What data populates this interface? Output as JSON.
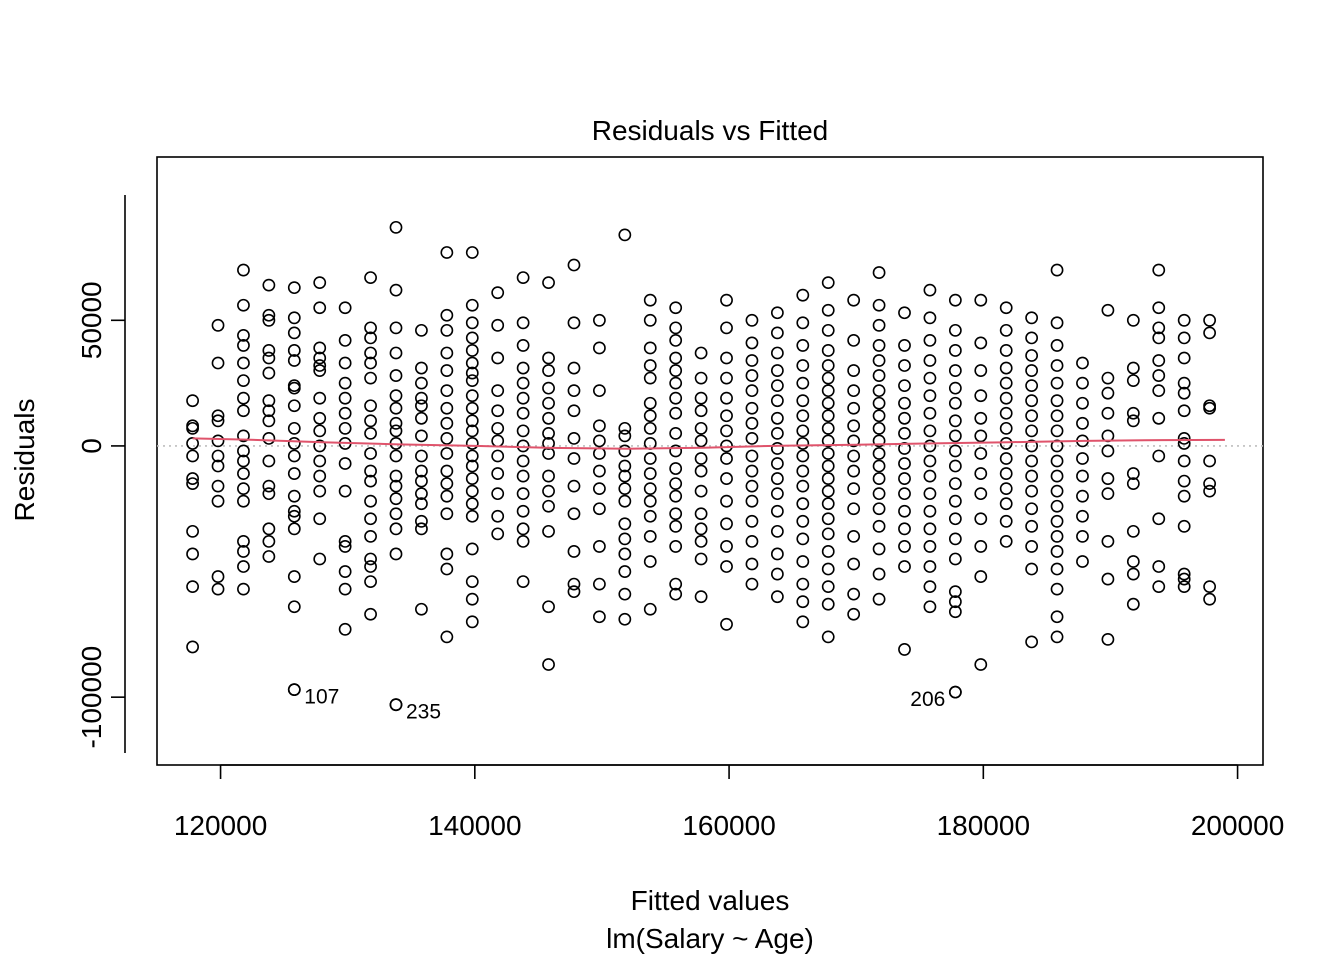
{
  "chart_data": {
    "type": "scatter",
    "title": "Residuals vs Fitted",
    "xlabel": "Fitted values",
    "subtitle": "lm(Salary ~ Age)",
    "ylabel": "Residuals",
    "xlim": [
      115000,
      202000
    ],
    "ylim": [
      -127000,
      115000
    ],
    "x_ticks": [
      120000,
      140000,
      160000,
      180000,
      200000
    ],
    "x_tick_labels": [
      "120000",
      "140000",
      "160000",
      "180000",
      "200000"
    ],
    "y_ticks": [
      -100000,
      0,
      50000
    ],
    "y_tick_labels": [
      "-100000",
      "0",
      "50000"
    ],
    "grid": false,
    "reference_line": {
      "y": 0,
      "style": "dotted",
      "color": "#bebebe"
    },
    "smooth_color": "#df536b",
    "smooth_line": [
      [
        117800,
        3000
      ],
      [
        122000,
        2500
      ],
      [
        128000,
        1500
      ],
      [
        134000,
        600
      ],
      [
        140000,
        0
      ],
      [
        146000,
        -800
      ],
      [
        152000,
        -1100
      ],
      [
        158000,
        -700
      ],
      [
        164000,
        100
      ],
      [
        170000,
        500
      ],
      [
        176000,
        1000
      ],
      [
        182000,
        1500
      ],
      [
        188000,
        2000
      ],
      [
        194000,
        2300
      ],
      [
        199000,
        2400
      ]
    ],
    "columns": [
      {
        "x": 117800,
        "y": [
          18000,
          8000,
          7000,
          1000,
          -4000,
          -13000,
          -15000,
          -34000,
          -43000,
          -56000,
          -80000
        ]
      },
      {
        "x": 119800,
        "y": [
          48000,
          33000,
          12000,
          10000,
          2000,
          -4000,
          -8000,
          -16000,
          -22000,
          -52000,
          -57000
        ]
      },
      {
        "x": 121800,
        "y": [
          70000,
          56000,
          44000,
          40000,
          33000,
          26000,
          19000,
          14000,
          4000,
          -2000,
          -6000,
          -11000,
          -17000,
          -22000,
          -38000,
          -42000,
          -48000,
          -57000
        ]
      },
      {
        "x": 123800,
        "y": [
          64000,
          52000,
          50000,
          38000,
          35000,
          29000,
          18000,
          14000,
          10000,
          3000,
          -6000,
          -16000,
          -19000,
          -33000,
          -38000,
          -44000
        ]
      },
      {
        "x": 125800,
        "y": [
          63000,
          51000,
          45000,
          38000,
          34000,
          24000,
          23000,
          16000,
          7000,
          1000,
          -4000,
          -11000,
          -20000,
          -26000,
          -28000,
          -33000,
          -52000,
          -64000,
          -97000
        ]
      },
      {
        "x": 127800,
        "y": [
          65000,
          55000,
          39000,
          35000,
          32000,
          30000,
          19000,
          11000,
          6000,
          0,
          -6000,
          -12000,
          -18000,
          -29000,
          -45000
        ]
      },
      {
        "x": 129800,
        "y": [
          55000,
          42000,
          33000,
          25000,
          19000,
          13000,
          7000,
          1000,
          -7000,
          -18000,
          -38000,
          -40000,
          -50000,
          -57000,
          -73000
        ]
      },
      {
        "x": 131800,
        "y": [
          67000,
          47000,
          43000,
          37000,
          33000,
          27000,
          16000,
          10000,
          5000,
          -3000,
          -10000,
          -14000,
          -22000,
          -29000,
          -36000,
          -45000,
          -48000,
          -54000,
          -67000
        ]
      },
      {
        "x": 133800,
        "y": [
          87000,
          62000,
          47000,
          37000,
          28000,
          20000,
          15000,
          9000,
          6000,
          1000,
          -4000,
          -12000,
          -16000,
          -21000,
          -27000,
          -33000,
          -43000,
          -103000
        ]
      },
      {
        "x": 135800,
        "y": [
          46000,
          31000,
          25000,
          19000,
          16000,
          11000,
          4000,
          -4000,
          -10000,
          -14000,
          -19000,
          -23000,
          -30000,
          -33000,
          -65000
        ]
      },
      {
        "x": 137800,
        "y": [
          77000,
          52000,
          46000,
          37000,
          30000,
          22000,
          15000,
          9000,
          3000,
          -3000,
          -10000,
          -15000,
          -20000,
          -27000,
          -43000,
          -49000,
          -76000
        ]
      },
      {
        "x": 139800,
        "y": [
          77000,
          56000,
          49000,
          43000,
          38000,
          33000,
          29000,
          26000,
          20000,
          15000,
          10000,
          6000,
          1000,
          -4000,
          -8000,
          -13000,
          -18000,
          -23000,
          -28000,
          -41000,
          -54000,
          -61000,
          -70000
        ]
      },
      {
        "x": 141800,
        "y": [
          61000,
          48000,
          35000,
          22000,
          14000,
          7000,
          2000,
          -4000,
          -11000,
          -19000,
          -28000,
          -35000
        ]
      },
      {
        "x": 143800,
        "y": [
          67000,
          49000,
          40000,
          31000,
          25000,
          19000,
          13000,
          6000,
          0,
          -6000,
          -12000,
          -19000,
          -26000,
          -33000,
          -38000,
          -54000
        ]
      },
      {
        "x": 145800,
        "y": [
          65000,
          35000,
          30000,
          23000,
          17000,
          11000,
          5000,
          1000,
          -3000,
          -12000,
          -18000,
          -24000,
          -34000,
          -64000,
          -87000
        ]
      },
      {
        "x": 147800,
        "y": [
          72000,
          49000,
          31000,
          22000,
          14000,
          3000,
          -5000,
          -16000,
          -27000,
          -42000,
          -55000,
          -58000
        ]
      },
      {
        "x": 149800,
        "y": [
          50000,
          39000,
          22000,
          8000,
          2000,
          -3000,
          -10000,
          -17000,
          -25000,
          -40000,
          -55000,
          -68000
        ]
      },
      {
        "x": 151800,
        "y": [
          84000,
          7000,
          4000,
          -2000,
          -8000,
          -12000,
          -17000,
          -22000,
          -31000,
          -37000,
          -43000,
          -50000,
          -59000,
          -69000
        ]
      },
      {
        "x": 153800,
        "y": [
          58000,
          50000,
          39000,
          32000,
          27000,
          17000,
          12000,
          7000,
          1000,
          -5000,
          -11000,
          -17000,
          -22000,
          -28000,
          -36000,
          -46000,
          -65000
        ]
      },
      {
        "x": 155800,
        "y": [
          55000,
          47000,
          42000,
          35000,
          30000,
          25000,
          19000,
          13000,
          5000,
          -2000,
          -9000,
          -15000,
          -20000,
          -27000,
          -32000,
          -40000,
          -55000,
          -59000
        ]
      },
      {
        "x": 157800,
        "y": [
          37000,
          27000,
          19000,
          14000,
          7000,
          2000,
          -5000,
          -10000,
          -18000,
          -27000,
          -33000,
          -38000,
          -45000,
          -60000
        ]
      },
      {
        "x": 159800,
        "y": [
          58000,
          47000,
          35000,
          27000,
          19000,
          12000,
          6000,
          0,
          -5000,
          -13000,
          -22000,
          -31000,
          -40000,
          -48000,
          -71000
        ]
      },
      {
        "x": 161800,
        "y": [
          50000,
          41000,
          34000,
          28000,
          22000,
          15000,
          9000,
          3000,
          -4000,
          -10000,
          -16000,
          -22000,
          -30000,
          -38000,
          -47000,
          -55000
        ]
      },
      {
        "x": 163800,
        "y": [
          53000,
          45000,
          37000,
          30000,
          24000,
          18000,
          11000,
          5000,
          -1000,
          -7000,
          -13000,
          -19000,
          -26000,
          -34000,
          -43000,
          -51000,
          -60000
        ]
      },
      {
        "x": 165800,
        "y": [
          60000,
          49000,
          40000,
          32000,
          25000,
          18000,
          12000,
          6000,
          1000,
          -4000,
          -10000,
          -16000,
          -23000,
          -30000,
          -37000,
          -46000,
          -55000,
          -62000,
          -70000
        ]
      },
      {
        "x": 167800,
        "y": [
          65000,
          54000,
          46000,
          38000,
          32000,
          27000,
          22000,
          17000,
          12000,
          7000,
          2000,
          -3000,
          -8000,
          -13000,
          -18000,
          -23000,
          -29000,
          -35000,
          -42000,
          -49000,
          -56000,
          -63000,
          -76000
        ]
      },
      {
        "x": 169800,
        "y": [
          58000,
          42000,
          30000,
          22000,
          15000,
          8000,
          2000,
          -4000,
          -10000,
          -17000,
          -25000,
          -36000,
          -47000,
          -59000,
          -67000
        ]
      },
      {
        "x": 171800,
        "y": [
          69000,
          56000,
          48000,
          40000,
          34000,
          28000,
          22000,
          17000,
          12000,
          7000,
          2000,
          -3000,
          -8000,
          -13000,
          -19000,
          -25000,
          -32000,
          -41000,
          -51000,
          -61000
        ]
      },
      {
        "x": 173800,
        "y": [
          53000,
          40000,
          32000,
          24000,
          17000,
          11000,
          5000,
          -1000,
          -7000,
          -13000,
          -19000,
          -26000,
          -33000,
          -40000,
          -48000,
          -81000
        ]
      },
      {
        "x": 175800,
        "y": [
          62000,
          51000,
          42000,
          34000,
          27000,
          20000,
          13000,
          6000,
          0,
          -6000,
          -12000,
          -19000,
          -26000,
          -33000,
          -40000,
          -48000,
          -56000,
          -64000
        ]
      },
      {
        "x": 177800,
        "y": [
          58000,
          46000,
          38000,
          30000,
          23000,
          17000,
          10000,
          4000,
          -2000,
          -8000,
          -15000,
          -22000,
          -29000,
          -37000,
          -45000,
          -58000,
          -62000,
          -66000,
          -98000
        ]
      },
      {
        "x": 179800,
        "y": [
          58000,
          41000,
          30000,
          20000,
          11000,
          4000,
          -3000,
          -11000,
          -19000,
          -29000,
          -40000,
          -52000,
          -87000
        ]
      },
      {
        "x": 181800,
        "y": [
          55000,
          46000,
          38000,
          31000,
          25000,
          19000,
          13000,
          7000,
          1000,
          -5000,
          -11000,
          -17000,
          -23000,
          -30000,
          -38000
        ]
      },
      {
        "x": 183800,
        "y": [
          51000,
          43000,
          36000,
          30000,
          24000,
          18000,
          12000,
          6000,
          0,
          -6000,
          -12000,
          -18000,
          -25000,
          -32000,
          -40000,
          -49000,
          -78000
        ]
      },
      {
        "x": 185800,
        "y": [
          70000,
          49000,
          40000,
          32000,
          25000,
          18000,
          12000,
          6000,
          0,
          -6000,
          -12000,
          -18000,
          -24000,
          -30000,
          -36000,
          -42000,
          -49000,
          -57000,
          -68000,
          -76000
        ]
      },
      {
        "x": 187800,
        "y": [
          33000,
          25000,
          17000,
          9000,
          2000,
          -5000,
          -12000,
          -20000,
          -28000,
          -36000,
          -46000
        ]
      },
      {
        "x": 189800,
        "y": [
          54000,
          27000,
          21000,
          13000,
          4000,
          -2000,
          -13000,
          -19000,
          -38000,
          -53000,
          -77000
        ]
      },
      {
        "x": 191800,
        "y": [
          50000,
          31000,
          26000,
          13000,
          10000,
          -11000,
          -15000,
          -34000,
          -46000,
          -51000,
          -63000
        ]
      },
      {
        "x": 193800,
        "y": [
          70000,
          55000,
          47000,
          43000,
          34000,
          28000,
          22000,
          11000,
          -4000,
          -29000,
          -48000,
          -56000
        ]
      },
      {
        "x": 195800,
        "y": [
          50000,
          43000,
          35000,
          25000,
          21000,
          14000,
          3000,
          1000,
          -6000,
          -14000,
          -20000,
          -32000,
          -51000,
          -53000,
          -56000
        ]
      },
      {
        "x": 197800,
        "y": [
          50000,
          45000,
          16000,
          15000,
          -6000,
          -15000,
          -18000,
          -56000,
          -61000
        ]
      }
    ],
    "labeled_points": [
      {
        "x": 125800,
        "y": -97000,
        "label": "107"
      },
      {
        "x": 133800,
        "y": -103000,
        "label": "235"
      },
      {
        "x": 177800,
        "y": -98000,
        "label": "206"
      }
    ]
  }
}
